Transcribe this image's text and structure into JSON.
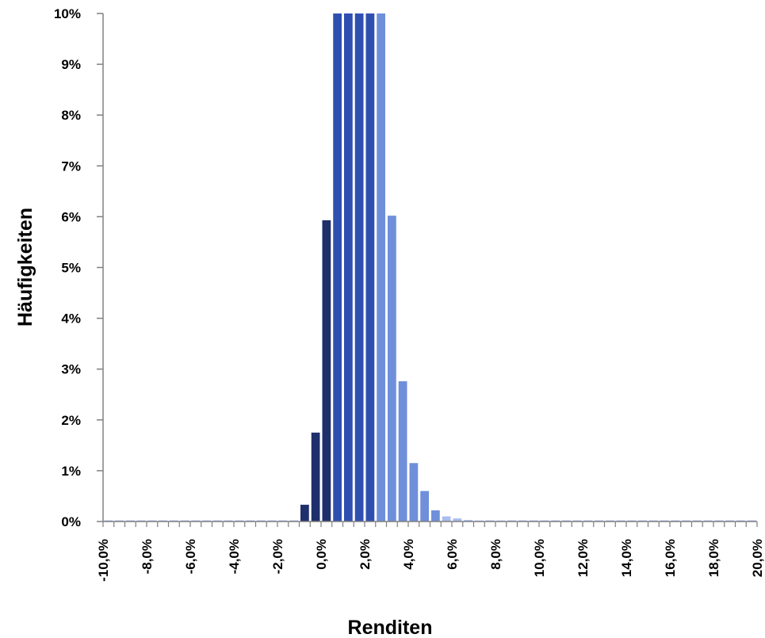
{
  "chart_data": {
    "type": "bar",
    "xlabel": "Renditen",
    "ylabel": "Häufigkeiten",
    "ylim": [
      0,
      10
    ],
    "xlim": [
      -10,
      20
    ],
    "bin_width": 0.5,
    "grid": false,
    "legend": "none",
    "y_ticks": [
      "0%",
      "1%",
      "2%",
      "3%",
      "4%",
      "5%",
      "6%",
      "7%",
      "8%",
      "9%",
      "10%"
    ],
    "x_ticks": [
      "-10,0%",
      "-8,0%",
      "-6,0%",
      "-4,0%",
      "-2,0%",
      "0,0%",
      "2,0%",
      "4,0%",
      "6,0%",
      "8,0%",
      "10,0%",
      "12,0%",
      "14,0%",
      "16,0%",
      "18,0%",
      "20,0%"
    ],
    "colors": {
      "dark": "#1f2f6b",
      "mid": "#2f4fb0",
      "light": "#6f8fdb",
      "pale": "#a8bdf0"
    },
    "bars": [
      {
        "x": -1.0,
        "value": 0.33,
        "shade": "dark"
      },
      {
        "x": -0.5,
        "value": 1.75,
        "shade": "dark"
      },
      {
        "x": 0.0,
        "value": 5.93,
        "shade": "dark"
      },
      {
        "x": 0.5,
        "value": 10.0,
        "shade": "mid"
      },
      {
        "x": 1.0,
        "value": 10.0,
        "shade": "mid"
      },
      {
        "x": 1.5,
        "value": 10.0,
        "shade": "mid"
      },
      {
        "x": 2.0,
        "value": 10.0,
        "shade": "mid"
      },
      {
        "x": 2.5,
        "value": 10.0,
        "shade": "light"
      },
      {
        "x": 3.0,
        "value": 6.02,
        "shade": "light"
      },
      {
        "x": 3.5,
        "value": 2.76,
        "shade": "light"
      },
      {
        "x": 4.0,
        "value": 1.15,
        "shade": "light"
      },
      {
        "x": 4.5,
        "value": 0.6,
        "shade": "light"
      },
      {
        "x": 5.0,
        "value": 0.22,
        "shade": "light"
      },
      {
        "x": 5.5,
        "value": 0.1,
        "shade": "pale"
      },
      {
        "x": 6.0,
        "value": 0.06,
        "shade": "pale"
      },
      {
        "x": 6.5,
        "value": 0.03,
        "shade": "pale"
      },
      {
        "x": 7.0,
        "value": 0.02,
        "shade": "pale"
      },
      {
        "x": 8.0,
        "value": 0.02,
        "shade": "pale"
      }
    ]
  }
}
